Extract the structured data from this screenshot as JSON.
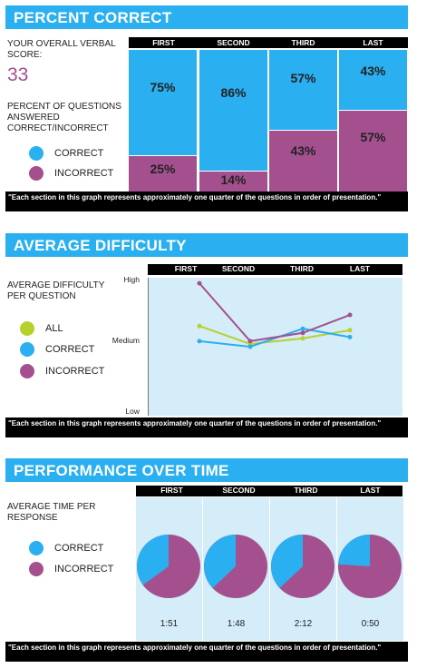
{
  "sections": {
    "percent_correct": {
      "title": "PERCENT CORRECT",
      "score_label": "YOUR OVERALL VERBAL SCORE:",
      "score": "33",
      "description": "PERCENT OF QUESTIONS ANSWERED CORRECT/INCORRECT"
    },
    "average_difficulty": {
      "title": "AVERAGE DIFFICULTY",
      "description": "AVERAGE DIFFICULTY PER QUESTION"
    },
    "performance_over_time": {
      "title": "PERFORMANCE OVER TIME",
      "description": "AVERAGE TIME PER RESPONSE"
    }
  },
  "columns": [
    "FIRST",
    "SECOND",
    "THIRD",
    "LAST"
  ],
  "legend": {
    "all": "ALL",
    "correct": "CORRECT",
    "incorrect": "INCORRECT"
  },
  "footnote": "\"Each section in this graph represents approximately one quarter of the questions in order of presentation.\"",
  "colors": {
    "section_bar": "#2aaff0",
    "correct": "#2aaff0",
    "incorrect": "#a4508f",
    "all": "#b7d12c",
    "panel_bg": "#d4edf8"
  },
  "chart_data": [
    {
      "type": "bar",
      "title": "PERCENT CORRECT",
      "categories": [
        "FIRST",
        "SECOND",
        "THIRD",
        "LAST"
      ],
      "series": [
        {
          "name": "CORRECT",
          "values": [
            75,
            86,
            57,
            43
          ]
        },
        {
          "name": "INCORRECT",
          "values": [
            25,
            14,
            43,
            57
          ]
        }
      ],
      "labels": {
        "correct": [
          "75%",
          "86%",
          "57%",
          "43%"
        ],
        "incorrect": [
          "25%",
          "14%",
          "43%",
          "57%"
        ]
      },
      "ylim": [
        0,
        100
      ],
      "stacked": true
    },
    {
      "type": "line",
      "title": "AVERAGE DIFFICULTY",
      "categories": [
        "FIRST",
        "SECOND",
        "THIRD",
        "LAST"
      ],
      "y_tick_labels": [
        "High",
        "Medium",
        "Low"
      ],
      "ylim": [
        0,
        1
      ],
      "series": [
        {
          "name": "ALL",
          "values": [
            0.65,
            0.52,
            0.56,
            0.62
          ]
        },
        {
          "name": "CORRECT",
          "values": [
            0.54,
            0.5,
            0.63,
            0.57
          ]
        },
        {
          "name": "INCORRECT",
          "values": [
            0.96,
            0.54,
            0.6,
            0.73
          ]
        }
      ]
    },
    {
      "type": "pie",
      "title": "PERFORMANCE OVER TIME",
      "categories": [
        "FIRST",
        "SECOND",
        "THIRD",
        "LAST"
      ],
      "series": [
        {
          "name": "CORRECT",
          "values": [
            35,
            37,
            37,
            24
          ]
        },
        {
          "name": "INCORRECT",
          "values": [
            65,
            63,
            63,
            76
          ]
        }
      ],
      "times": [
        "1:51",
        "1:48",
        "2:12",
        "0:50"
      ]
    }
  ]
}
